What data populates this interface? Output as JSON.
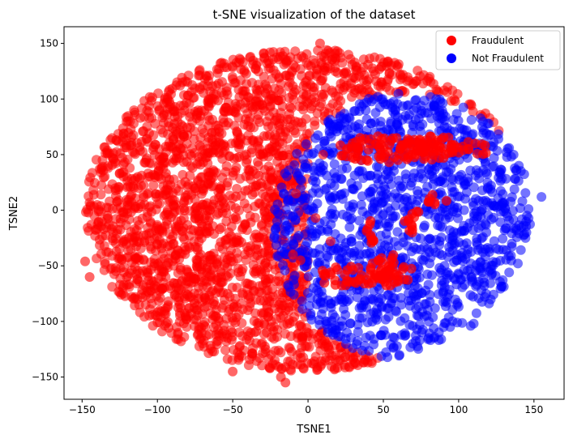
{
  "chart_data": {
    "type": "scatter",
    "title": "t-SNE visualization of the dataset",
    "xlabel": "TSNE1",
    "ylabel": "TSNE2",
    "xlim": [
      -162,
      170
    ],
    "ylim": [
      -170,
      165
    ],
    "xticks": [
      -150,
      -100,
      -50,
      0,
      50,
      100,
      150
    ],
    "yticks": [
      -150,
      -100,
      -50,
      0,
      50,
      100,
      150
    ],
    "xtick_labels": [
      "−150",
      "−100",
      "−50",
      "0",
      "50",
      "100",
      "150"
    ],
    "ytick_labels": [
      "−150",
      "−100",
      "−50",
      "0",
      "50",
      "100",
      "150"
    ],
    "grid": false,
    "legend_placement": "top-right",
    "series": [
      {
        "name": "Fraudulent",
        "color": "#ff0000",
        "region": "left and upper portion of the disc plus clusters in the right half",
        "clusters": [
          {
            "x": 55,
            "y": 55,
            "rx": 40,
            "ry": 12
          },
          {
            "x": 90,
            "y": 55,
            "rx": 30,
            "ry": 12
          },
          {
            "x": 30,
            "y": -60,
            "rx": 25,
            "ry": 10
          },
          {
            "x": 55,
            "y": -55,
            "rx": 15,
            "ry": 15
          },
          {
            "x": 70,
            "y": -10,
            "rx": 6,
            "ry": 12
          },
          {
            "x": 85,
            "y": 10,
            "rx": 8,
            "ry": 5
          },
          {
            "x": 40,
            "y": -20,
            "rx": 5,
            "ry": 12
          }
        ],
        "points": [
          [
            8,
            150
          ],
          [
            -145,
            -60
          ],
          [
            -148,
            -46
          ],
          [
            -50,
            -145
          ],
          [
            -18,
            -150
          ],
          [
            -15,
            -155
          ],
          [
            10,
            50
          ],
          [
            -8,
            15
          ],
          [
            5,
            -7
          ],
          [
            15,
            -28
          ],
          [
            -10,
            -40
          ],
          [
            -5,
            -45
          ]
        ]
      },
      {
        "name": "Not Fraudulent",
        "color": "#0000ff",
        "region": "right-center portion of the disc",
        "points": [
          [
            155,
            12
          ],
          [
            120,
            78
          ],
          [
            110,
            -102
          ],
          [
            108,
            -104
          ],
          [
            140,
            40
          ],
          [
            145,
            -20
          ]
        ]
      }
    ]
  }
}
